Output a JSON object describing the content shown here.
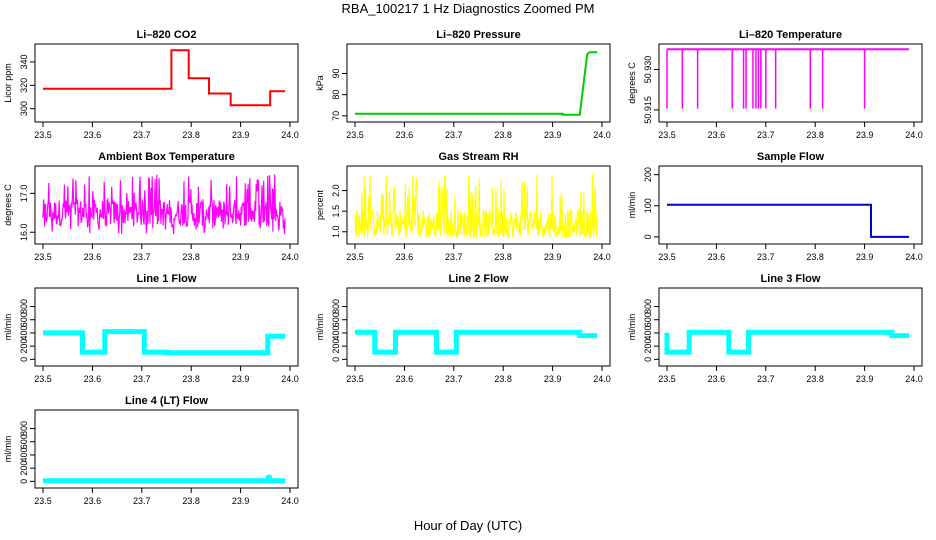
{
  "title": "RBA_100217  1 Hz Diagnostics Zoomed PM",
  "xlabel": "Hour of Day (UTC)",
  "chart_data": [
    {
      "type": "line",
      "title": "Li–820 CO2",
      "ylabel": "Licor ppm",
      "color": "#ff0000",
      "xlim": [
        23.5,
        24.0
      ],
      "ylim": [
        292,
        352
      ],
      "xticks": [
        "23.5",
        "23.6",
        "23.7",
        "23.8",
        "23.9",
        "24.0"
      ],
      "yticks": [
        "300",
        "320",
        "340"
      ],
      "series": [
        {
          "x": [
            23.5,
            23.76,
            23.76,
            23.795,
            23.795,
            23.836,
            23.836,
            23.88,
            23.88,
            23.96,
            23.96,
            23.99
          ],
          "y": [
            317,
            317,
            350,
            350,
            326,
            326,
            313,
            313,
            303,
            303,
            315,
            315
          ]
        }
      ]
    },
    {
      "type": "line",
      "title": "Li–820 Pressure",
      "ylabel": "kPa",
      "color": "#00cc00",
      "xlim": [
        23.5,
        24.0
      ],
      "ylim": [
        69,
        102
      ],
      "xticks": [
        "23.5",
        "23.6",
        "23.7",
        "23.8",
        "23.9",
        "24.0"
      ],
      "yticks": [
        "70",
        "80",
        "90"
      ],
      "series": [
        {
          "x": [
            23.5,
            23.92,
            23.92,
            23.955,
            23.96,
            23.97,
            23.975,
            23.99
          ],
          "y": [
            71,
            71,
            70.5,
            70.5,
            80,
            99,
            100,
            100
          ]
        }
      ]
    },
    {
      "type": "line",
      "title": "Li–820 Temperature",
      "ylabel": "degrees C",
      "color": "#ff00ff",
      "xlim": [
        23.5,
        24.0
      ],
      "ylim": [
        50.912,
        50.938
      ],
      "xticks": [
        "23.5",
        "23.6",
        "23.7",
        "23.8",
        "23.9",
        "24.0"
      ],
      "yticks": [
        "50.915",
        "50.930"
      ],
      "series": [
        {
          "x": [
            23.5,
            23.99
          ],
          "y": [
            50.9375,
            50.9375
          ]
        }
      ],
      "dips": [
        23.5,
        23.531,
        23.562,
        23.632,
        23.655,
        23.66,
        23.674,
        23.68,
        23.685,
        23.69,
        23.7,
        23.72,
        23.79,
        23.815,
        23.9
      ]
    },
    {
      "type": "line",
      "title": "Ambient Box Temperature",
      "ylabel": "degrees C",
      "color": "#ff00ff",
      "xlim": [
        23.5,
        24.0
      ],
      "ylim": [
        15.8,
        17.6
      ],
      "xticks": [
        "23.5",
        "23.6",
        "23.7",
        "23.8",
        "23.9",
        "24.0"
      ],
      "yticks": [
        "16.0",
        "17.0"
      ],
      "series": [
        {
          "mean": 16.5,
          "low": 15.95,
          "high": 17.5
        }
      ]
    },
    {
      "type": "line",
      "title": "Gas Stream RH",
      "ylabel": "percent",
      "color": "#ffff00",
      "xlim": [
        23.5,
        24.0
      ],
      "ylim": [
        0.8,
        2.5
      ],
      "xticks": [
        "23.5",
        "23.6",
        "23.7",
        "23.8",
        "23.9",
        "24.0"
      ],
      "yticks": [
        "1.0",
        "1.5",
        "2.0"
      ],
      "series": [
        {
          "mean": 1.2,
          "low": 0.85,
          "high": 2.4
        }
      ]
    },
    {
      "type": "line",
      "title": "Sample Flow",
      "ylabel": "ml/min",
      "color": "#0000cc",
      "xlim": [
        23.5,
        24.0
      ],
      "ylim": [
        -10,
        215
      ],
      "xticks": [
        "23.5",
        "23.6",
        "23.7",
        "23.8",
        "23.9",
        "24.0"
      ],
      "yticks": [
        "0",
        "100",
        "200"
      ],
      "series": [
        {
          "x": [
            23.5,
            23.913,
            23.913,
            23.99
          ],
          "y": [
            103,
            103,
            0,
            0
          ]
        }
      ]
    },
    {
      "type": "line",
      "title": "Line 1 Flow",
      "ylabel": "ml/min",
      "color": "#00ffff",
      "xlim": [
        23.5,
        24.0
      ],
      "ylim": [
        -40,
        1020
      ],
      "xticks": [
        "23.5",
        "23.6",
        "23.7",
        "23.8",
        "23.9",
        "24.0"
      ],
      "yticks": [
        "0",
        "200",
        "400",
        "600",
        "800"
      ],
      "series": [
        {
          "x": [
            23.5,
            23.58,
            23.58,
            23.625,
            23.625,
            23.705,
            23.705,
            23.75,
            23.75,
            23.955,
            23.955,
            23.99
          ],
          "y": [
            400,
            400,
            110,
            110,
            420,
            420,
            110,
            110,
            100,
            100,
            350,
            350
          ]
        }
      ]
    },
    {
      "type": "line",
      "title": "Line 2 Flow",
      "ylabel": "ml/min",
      "color": "#00ffff",
      "xlim": [
        23.5,
        24.0
      ],
      "ylim": [
        -40,
        1020
      ],
      "xticks": [
        "23.5",
        "23.6",
        "23.7",
        "23.8",
        "23.9",
        "24.0"
      ],
      "yticks": [
        "0",
        "200",
        "400",
        "600",
        "800"
      ],
      "series": [
        {
          "x": [
            23.5,
            23.54,
            23.54,
            23.582,
            23.582,
            23.665,
            23.665,
            23.705,
            23.705,
            23.955,
            23.955,
            23.99
          ],
          "y": [
            410,
            410,
            110,
            110,
            410,
            410,
            110,
            110,
            410,
            410,
            360,
            360
          ]
        }
      ]
    },
    {
      "type": "line",
      "title": "Line 3 Flow",
      "ylabel": "ml/min",
      "color": "#00ffff",
      "xlim": [
        23.5,
        24.0
      ],
      "ylim": [
        -40,
        1020
      ],
      "xticks": [
        "23.5",
        "23.6",
        "23.7",
        "23.8",
        "23.9",
        "24.0"
      ],
      "yticks": [
        "0",
        "200",
        "400",
        "600",
        "800"
      ],
      "series": [
        {
          "x": [
            23.5,
            23.5,
            23.545,
            23.545,
            23.625,
            23.625,
            23.665,
            23.665,
            23.955,
            23.955,
            23.99
          ],
          "y": [
            400,
            110,
            110,
            410,
            410,
            110,
            110,
            410,
            410,
            360,
            360
          ]
        }
      ]
    },
    {
      "type": "line",
      "title": "Line 4 (LT) Flow",
      "ylabel": "ml/min",
      "color": "#00ffff",
      "xlim": [
        23.5,
        24.0
      ],
      "ylim": [
        -40,
        1020
      ],
      "xticks": [
        "23.5",
        "23.6",
        "23.7",
        "23.8",
        "23.9",
        "24.0"
      ],
      "yticks": [
        "0",
        "200",
        "400",
        "600",
        "800"
      ],
      "series": [
        {
          "x": [
            23.5,
            23.955,
            23.957,
            23.96,
            23.99
          ],
          "y": [
            10,
            10,
            90,
            10,
            10
          ]
        }
      ]
    }
  ]
}
